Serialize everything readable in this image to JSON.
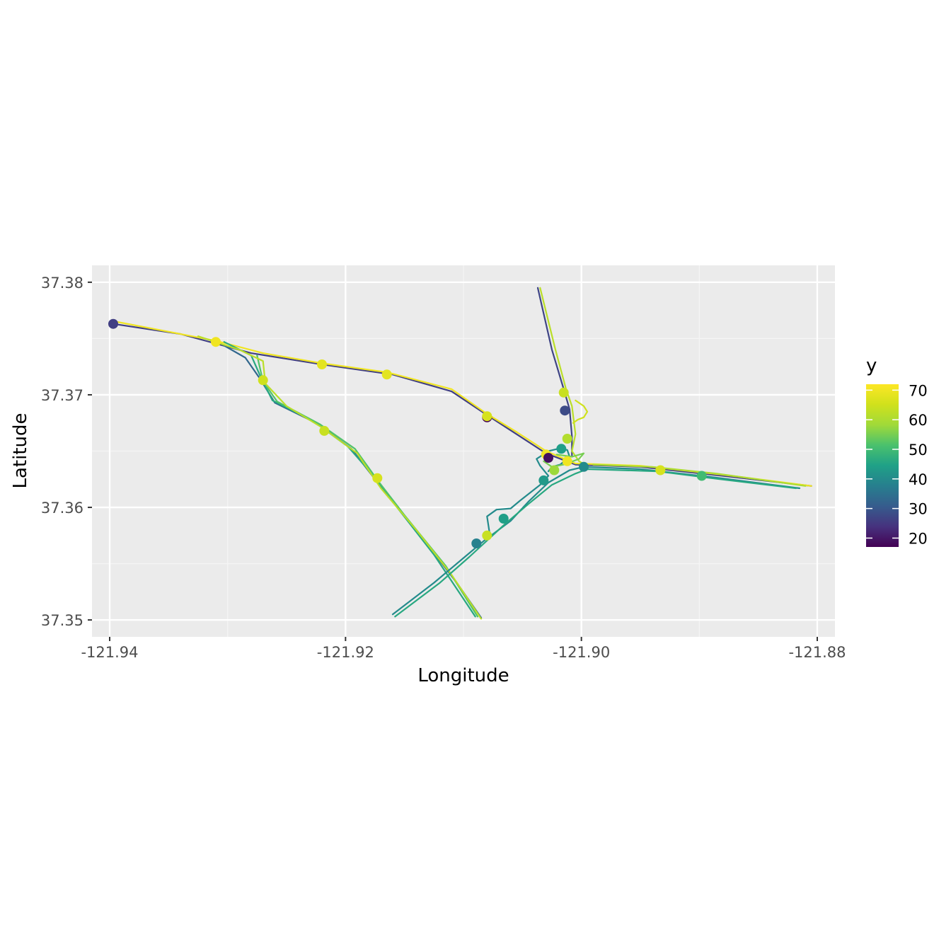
{
  "chart_data": {
    "type": "line",
    "xlabel": "Longitude",
    "ylabel": "Latitude",
    "xlim": [
      -121.9415,
      -121.8785
    ],
    "ylim": [
      37.3485,
      37.3815
    ],
    "x_ticks": [
      -121.94,
      -121.92,
      -121.9,
      -121.88
    ],
    "x_tick_labels": [
      "-121.94",
      "-121.92",
      "-121.90",
      "-121.88"
    ],
    "y_ticks": [
      37.35,
      37.36,
      37.37,
      37.38
    ],
    "y_tick_labels": [
      "37.35",
      "37.36",
      "37.37",
      "37.38"
    ],
    "grid": true,
    "legend": {
      "title": "y",
      "position": "right",
      "type": "colorbar",
      "palette": "viridis",
      "range": [
        17,
        72
      ],
      "breaks": [
        20,
        30,
        40,
        50,
        60,
        70
      ],
      "break_labels": [
        "20",
        "30",
        "40",
        "50",
        "60",
        "70"
      ]
    },
    "colors": {
      "panel": "#ebebeb",
      "grid_major": "#ffffff",
      "grid_minor": "#f5f5f5"
    },
    "series": [
      {
        "y": 26,
        "points": [
          [
            -121.9397,
            37.3763
          ],
          [
            -121.934,
            37.3754
          ],
          [
            -121.928,
            37.3737
          ],
          [
            -121.922,
            37.3727
          ],
          [
            -121.916,
            37.3718
          ],
          [
            -121.911,
            37.3703
          ],
          [
            -121.908,
            37.3682
          ],
          [
            -121.9055,
            37.3665
          ],
          [
            -121.903,
            37.3648
          ],
          [
            -121.9005,
            37.3638
          ],
          [
            -121.895,
            37.3636
          ],
          [
            -121.888,
            37.3628
          ],
          [
            -121.8805,
            37.3619
          ]
        ]
      },
      {
        "y": 70,
        "points": [
          [
            -121.9395,
            37.3765
          ],
          [
            -121.931,
            37.3748
          ],
          [
            -121.927,
            37.3737
          ],
          [
            -121.922,
            37.3728
          ],
          [
            -121.9165,
            37.372
          ],
          [
            -121.911,
            37.3705
          ],
          [
            -121.908,
            37.3683
          ],
          [
            -121.9055,
            37.3667
          ],
          [
            -121.903,
            37.365
          ],
          [
            -121.9005,
            37.3639
          ],
          [
            -121.895,
            37.3637
          ],
          [
            -121.888,
            37.3629
          ],
          [
            -121.8805,
            37.3619
          ]
        ]
      },
      {
        "y": 33,
        "points": [
          [
            -121.9305,
            37.3745
          ],
          [
            -121.9285,
            37.3733
          ],
          [
            -121.9273,
            37.3715
          ],
          [
            -121.926,
            37.3693
          ],
          [
            -121.9225,
            37.3675
          ],
          [
            -121.9195,
            37.3652
          ],
          [
            -121.9175,
            37.3625
          ],
          [
            -121.914,
            37.358
          ],
          [
            -121.9105,
            37.3532
          ],
          [
            -121.9085,
            37.3502
          ]
        ]
      },
      {
        "y": 46,
        "points": [
          [
            -121.9303,
            37.3747
          ],
          [
            -121.928,
            37.3735
          ],
          [
            -121.9272,
            37.3716
          ],
          [
            -121.9262,
            37.3695
          ],
          [
            -121.9228,
            37.3677
          ],
          [
            -121.9198,
            37.3654
          ],
          [
            -121.9182,
            37.3635
          ],
          [
            -121.916,
            37.3605
          ],
          [
            -121.9125,
            37.3558
          ],
          [
            -121.909,
            37.3503
          ]
        ]
      },
      {
        "y": 52,
        "points": [
          [
            -121.9275,
            37.3735
          ],
          [
            -121.927,
            37.3712
          ],
          [
            -121.9258,
            37.3694
          ],
          [
            -121.9222,
            37.3674
          ],
          [
            -121.9192,
            37.3652
          ],
          [
            -121.9172,
            37.3623
          ],
          [
            -121.915,
            37.3593
          ],
          [
            -121.9115,
            37.3548
          ],
          [
            -121.9088,
            37.3503
          ]
        ]
      },
      {
        "y": 62,
        "points": [
          [
            -121.9325,
            37.3752
          ],
          [
            -121.929,
            37.374
          ],
          [
            -121.927,
            37.373
          ],
          [
            -121.9268,
            37.371
          ],
          [
            -121.925,
            37.369
          ],
          [
            -121.922,
            37.3671
          ],
          [
            -121.919,
            37.3648
          ],
          [
            -121.9185,
            37.364
          ],
          [
            -121.917,
            37.3617
          ],
          [
            -121.914,
            37.358
          ],
          [
            -121.911,
            37.354
          ],
          [
            -121.9085,
            37.3501
          ]
        ]
      },
      {
        "y": 40,
        "points": [
          [
            -121.916,
            37.3505
          ],
          [
            -121.9125,
            37.3533
          ],
          [
            -121.91,
            37.3555
          ],
          [
            -121.9083,
            37.357
          ],
          [
            -121.906,
            37.3588
          ],
          [
            -121.9045,
            37.3605
          ],
          [
            -121.9028,
            37.3622
          ],
          [
            -121.901,
            37.3633
          ],
          [
            -121.8998,
            37.3636
          ],
          [
            -121.895,
            37.3634
          ],
          [
            -121.889,
            37.3627
          ],
          [
            -121.8815,
            37.3617
          ]
        ]
      },
      {
        "y": 46,
        "points": [
          [
            -121.9158,
            37.3503
          ],
          [
            -121.912,
            37.3533
          ],
          [
            -121.9095,
            37.3556
          ],
          [
            -121.9065,
            37.3585
          ],
          [
            -121.9045,
            37.3603
          ],
          [
            -121.9025,
            37.362
          ],
          [
            -121.9005,
            37.363
          ],
          [
            -121.8995,
            37.3634
          ],
          [
            -121.8935,
            37.3632
          ],
          [
            -121.889,
            37.3626
          ],
          [
            -121.8818,
            37.3617
          ]
        ]
      },
      {
        "y": 40,
        "points": [
          [
            -121.9078,
            37.3578
          ],
          [
            -121.908,
            37.3592
          ],
          [
            -121.9072,
            37.3598
          ],
          [
            -121.906,
            37.3599
          ],
          [
            -121.9052,
            37.3606
          ],
          [
            -121.9035,
            37.362
          ],
          [
            -121.9028,
            37.3628
          ],
          [
            -121.9035,
            37.3637
          ],
          [
            -121.9038,
            37.3643
          ],
          [
            -121.9028,
            37.365
          ],
          [
            -121.902,
            37.3652
          ],
          [
            -121.9012,
            37.3651
          ],
          [
            -121.901,
            37.3645
          ],
          [
            -121.9018,
            37.3638
          ],
          [
            -121.9025,
            37.3636
          ],
          [
            -121.9028,
            37.3632
          ]
        ]
      },
      {
        "y": 27,
        "points": [
          [
            -121.9037,
            37.3795
          ],
          [
            -121.9025,
            37.374
          ],
          [
            -121.9015,
            37.3705
          ],
          [
            -121.901,
            37.3687
          ],
          [
            -121.9008,
            37.3663
          ],
          [
            -121.9008,
            37.3645
          ]
        ]
      },
      {
        "y": 62,
        "points": [
          [
            -121.9035,
            37.3795
          ],
          [
            -121.9022,
            37.374
          ],
          [
            -121.9013,
            37.3705
          ],
          [
            -121.9008,
            37.369
          ],
          [
            -121.9005,
            37.3665
          ],
          [
            -121.9008,
            37.365
          ],
          [
            -121.9002,
            37.3641
          ],
          [
            -121.8995,
            37.3637
          ]
        ]
      },
      {
        "y": 65,
        "points": [
          [
            -121.9005,
            37.3695
          ],
          [
            -121.8998,
            37.369
          ],
          [
            -121.8995,
            37.3685
          ],
          [
            -121.8998,
            37.368
          ],
          [
            -121.9003,
            37.3678
          ],
          [
            -121.9007,
            37.3675
          ]
        ]
      },
      {
        "y": 55,
        "points": [
          [
            -121.9021,
            37.3647
          ],
          [
            -121.9008,
            37.3645
          ],
          [
            -121.8998,
            37.3648
          ],
          [
            -121.9002,
            37.3643
          ],
          [
            -121.9015,
            37.3638
          ],
          [
            -121.9025,
            37.3636
          ],
          [
            -121.9032,
            37.3641
          ]
        ]
      },
      {
        "y": 60,
        "points": [
          [
            -121.899,
            37.3638
          ],
          [
            -121.894,
            37.3636
          ],
          [
            -121.8885,
            37.363
          ],
          [
            -121.881,
            37.3619
          ]
        ]
      }
    ],
    "points": [
      {
        "x": -121.9397,
        "y": 37.3763,
        "value": 26
      },
      {
        "x": -121.931,
        "y": 37.3747,
        "value": 70
      },
      {
        "x": -121.927,
        "y": 37.3713,
        "value": 65
      },
      {
        "x": -121.922,
        "y": 37.3727,
        "value": 68
      },
      {
        "x": -121.9165,
        "y": 37.3718,
        "value": 68
      },
      {
        "x": -121.9218,
        "y": 37.3668,
        "value": 64
      },
      {
        "x": -121.9173,
        "y": 37.3626,
        "value": 66
      },
      {
        "x": -121.908,
        "y": 37.368,
        "value": 17
      },
      {
        "x": -121.908,
        "y": 37.3681,
        "value": 66
      },
      {
        "x": -121.9015,
        "y": 37.3702,
        "value": 64
      },
      {
        "x": -121.9014,
        "y": 37.3686,
        "value": 28
      },
      {
        "x": -121.9012,
        "y": 37.3661,
        "value": 61
      },
      {
        "x": -121.9017,
        "y": 37.3652,
        "value": 44
      },
      {
        "x": -121.903,
        "y": 37.3647,
        "value": 70
      },
      {
        "x": -121.9028,
        "y": 37.3644,
        "value": 19
      },
      {
        "x": -121.9012,
        "y": 37.3641,
        "value": 70
      },
      {
        "x": -121.9023,
        "y": 37.3633,
        "value": 58
      },
      {
        "x": -121.8998,
        "y": 37.3636,
        "value": 40
      },
      {
        "x": -121.9032,
        "y": 37.3624,
        "value": 43
      },
      {
        "x": -121.8933,
        "y": 37.3633,
        "value": 66
      },
      {
        "x": -121.8898,
        "y": 37.3628,
        "value": 50
      },
      {
        "x": -121.9066,
        "y": 37.359,
        "value": 44
      },
      {
        "x": -121.908,
        "y": 37.3575,
        "value": 64
      },
      {
        "x": -121.9089,
        "y": 37.3568,
        "value": 38
      }
    ]
  }
}
